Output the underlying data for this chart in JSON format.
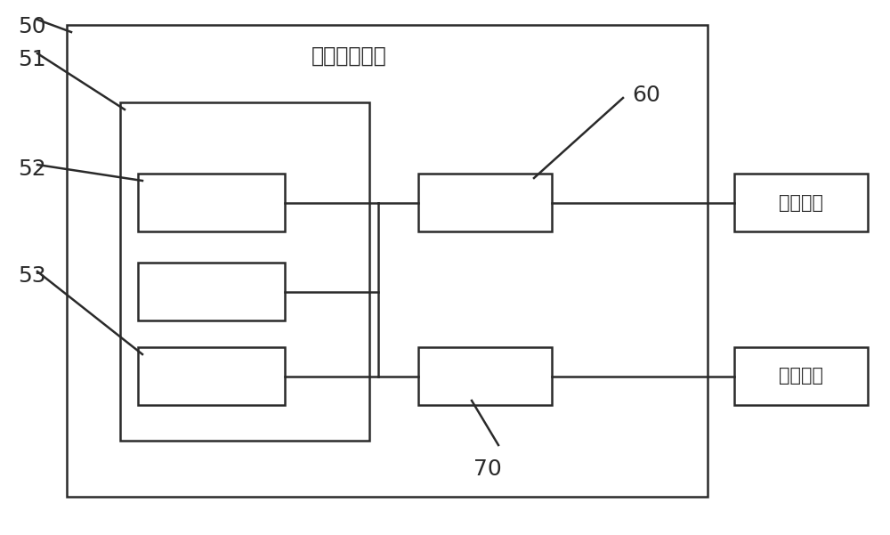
{
  "bg_color": "#ffffff",
  "line_color": "#2a2a2a",
  "title_text": "数控监测机构",
  "label_50": "50",
  "label_51": "51",
  "label_52": "52",
  "label_53": "53",
  "label_60": "60",
  "label_70": "70",
  "label_right1": "充气机构",
  "label_right2": "施压机构",
  "font_size_labels": 15,
  "font_size_title": 17,
  "font_size_nums": 18
}
